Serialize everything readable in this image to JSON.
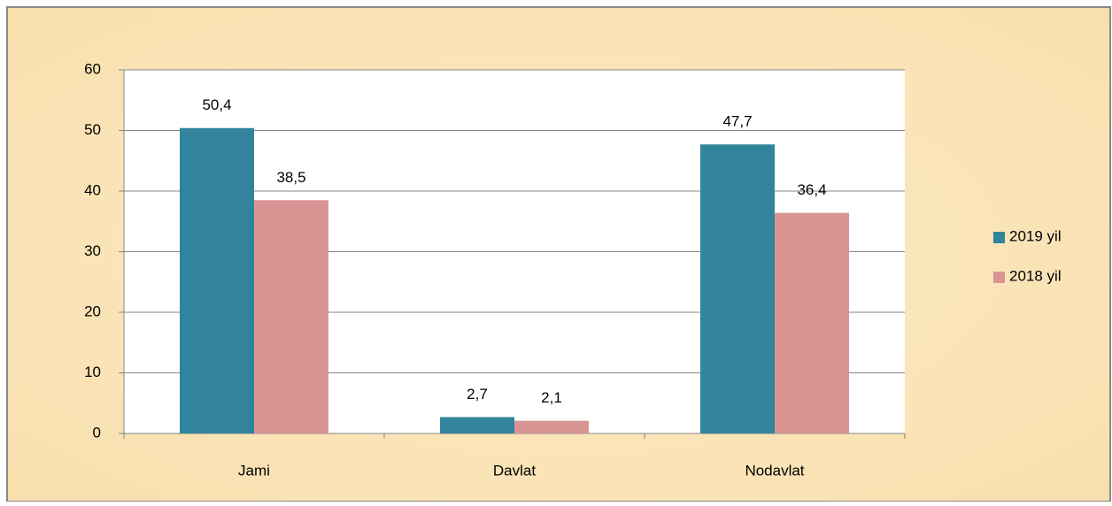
{
  "chart_data": {
    "type": "bar",
    "categories": [
      "Jami",
      "Davlat",
      "Nodavlat"
    ],
    "series": [
      {
        "name": "2019 yil",
        "color": "#31849b",
        "values": [
          50.4,
          2.7,
          47.7
        ],
        "value_labels": [
          "50,4",
          "2,7",
          "47,7"
        ]
      },
      {
        "name": "2018 yil",
        "color": "#d99594",
        "values": [
          38.5,
          2.1,
          36.4
        ],
        "value_labels": [
          "38,5",
          "2,1",
          "36,4"
        ]
      }
    ],
    "ylim": [
      0,
      60
    ],
    "yticks": [
      0,
      10,
      20,
      30,
      40,
      50,
      60
    ],
    "grid": true,
    "legend": "right"
  }
}
